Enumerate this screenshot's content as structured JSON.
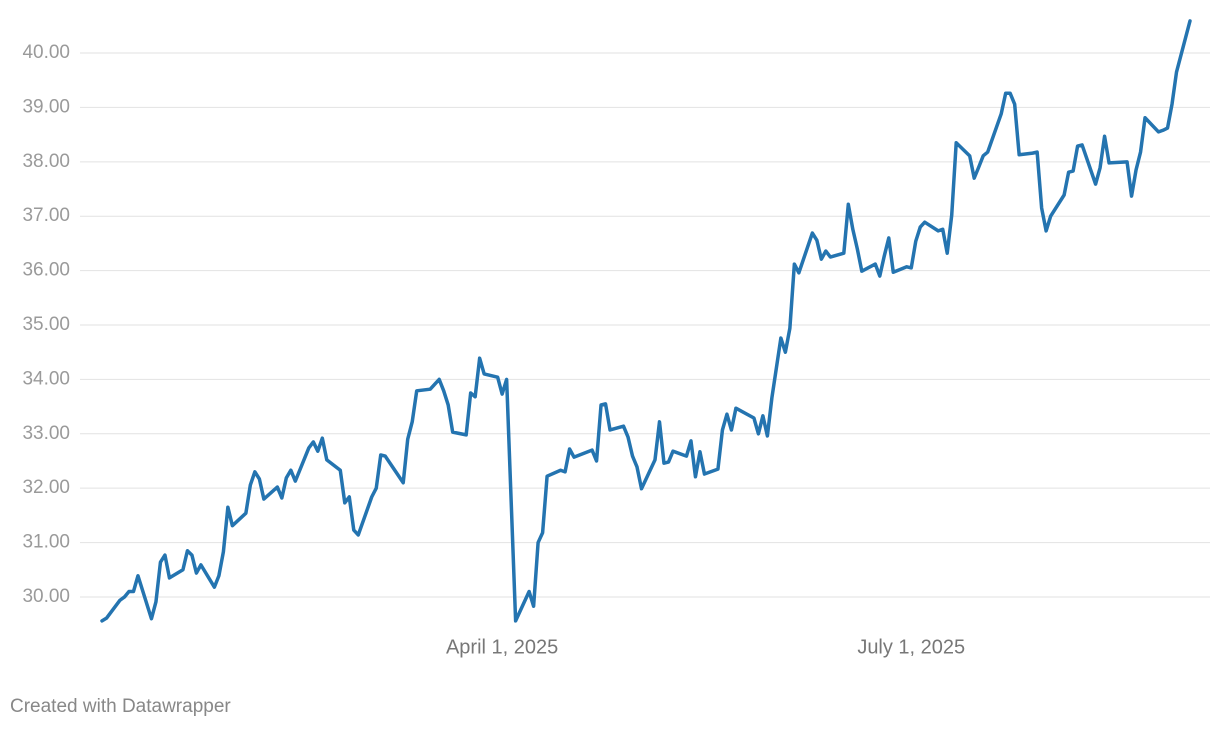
{
  "chart_data": {
    "type": "line",
    "x": [
      "2025-01-02",
      "2025-01-03",
      "2025-01-06",
      "2025-01-07",
      "2025-01-08",
      "2025-01-09",
      "2025-01-10",
      "2025-01-13",
      "2025-01-14",
      "2025-01-15",
      "2025-01-16",
      "2025-01-17",
      "2025-01-20",
      "2025-01-21",
      "2025-01-22",
      "2025-01-23",
      "2025-01-24",
      "2025-01-27",
      "2025-01-28",
      "2025-01-29",
      "2025-01-30",
      "2025-01-31",
      "2025-02-03",
      "2025-02-04",
      "2025-02-05",
      "2025-02-06",
      "2025-02-07",
      "2025-02-10",
      "2025-02-11",
      "2025-02-12",
      "2025-02-13",
      "2025-02-14",
      "2025-02-17",
      "2025-02-18",
      "2025-02-19",
      "2025-02-20",
      "2025-02-21",
      "2025-02-24",
      "2025-02-25",
      "2025-02-26",
      "2025-02-27",
      "2025-02-28",
      "2025-03-03",
      "2025-03-04",
      "2025-03-05",
      "2025-03-06",
      "2025-03-10",
      "2025-03-11",
      "2025-03-12",
      "2025-03-13",
      "2025-03-16",
      "2025-03-18",
      "2025-03-19",
      "2025-03-20",
      "2025-03-21",
      "2025-03-24",
      "2025-03-25",
      "2025-03-26",
      "2025-03-27",
      "2025-03-28",
      "2025-03-31",
      "2025-04-01",
      "2025-04-02",
      "2025-04-04",
      "2025-04-07",
      "2025-04-08",
      "2025-04-09",
      "2025-04-10",
      "2025-04-11",
      "2025-04-14",
      "2025-04-15",
      "2025-04-16",
      "2025-04-17",
      "2025-04-21",
      "2025-04-22",
      "2025-04-23",
      "2025-04-24",
      "2025-04-25",
      "2025-04-28",
      "2025-04-29",
      "2025-04-30",
      "2025-05-01",
      "2025-05-02",
      "2025-05-05",
      "2025-05-06",
      "2025-05-07",
      "2025-05-08",
      "2025-05-09",
      "2025-05-12",
      "2025-05-13",
      "2025-05-14",
      "2025-05-15",
      "2025-05-16",
      "2025-05-19",
      "2025-05-20",
      "2025-05-21",
      "2025-05-22",
      "2025-05-23",
      "2025-05-27",
      "2025-05-28",
      "2025-05-29",
      "2025-05-30",
      "2025-05-31",
      "2025-06-02",
      "2025-06-03",
      "2025-06-04",
      "2025-06-05",
      "2025-06-06",
      "2025-06-09",
      "2025-06-10",
      "2025-06-11",
      "2025-06-12",
      "2025-06-13",
      "2025-06-16",
      "2025-06-17",
      "2025-06-18",
      "2025-06-19",
      "2025-06-20",
      "2025-06-23",
      "2025-06-24",
      "2025-06-25",
      "2025-06-26",
      "2025-06-27",
      "2025-06-30",
      "2025-07-01",
      "2025-07-02",
      "2025-07-03",
      "2025-07-04",
      "2025-07-07",
      "2025-07-08",
      "2025-07-09",
      "2025-07-10",
      "2025-07-11",
      "2025-07-14",
      "2025-07-15",
      "2025-07-16",
      "2025-07-17",
      "2025-07-18",
      "2025-07-21",
      "2025-07-22",
      "2025-07-23",
      "2025-07-24",
      "2025-07-25",
      "2025-07-28",
      "2025-07-29",
      "2025-07-30",
      "2025-07-31",
      "2025-08-01",
      "2025-08-04",
      "2025-08-05",
      "2025-08-06",
      "2025-08-07",
      "2025-08-08",
      "2025-08-11",
      "2025-08-12",
      "2025-08-13",
      "2025-08-14",
      "2025-08-18",
      "2025-08-19",
      "2025-08-20",
      "2025-08-21",
      "2025-08-22",
      "2025-08-25",
      "2025-08-26",
      "2025-08-27",
      "2025-08-28",
      "2025-08-29",
      "2025-09-01"
    ],
    "values": [
      29.56,
      29.61,
      29.94,
      30.0,
      30.1,
      30.1,
      30.39,
      29.6,
      29.91,
      30.64,
      30.77,
      30.35,
      30.5,
      30.85,
      30.77,
      30.44,
      30.59,
      30.18,
      30.39,
      30.83,
      31.65,
      31.31,
      31.54,
      32.06,
      32.3,
      32.17,
      31.8,
      32.02,
      31.82,
      32.19,
      32.33,
      32.13,
      32.74,
      32.85,
      32.68,
      32.92,
      32.52,
      32.33,
      31.73,
      31.84,
      31.23,
      31.14,
      31.84,
      32.0,
      32.61,
      32.59,
      32.1,
      32.9,
      33.22,
      33.79,
      33.82,
      34.0,
      33.79,
      33.53,
      33.03,
      32.98,
      33.75,
      33.68,
      34.39,
      34.1,
      34.04,
      33.73,
      34.0,
      29.56,
      30.1,
      29.83,
      31.0,
      31.18,
      32.22,
      32.33,
      32.3,
      32.72,
      32.57,
      32.7,
      32.5,
      33.53,
      33.55,
      33.07,
      33.14,
      32.94,
      32.59,
      32.39,
      31.99,
      32.52,
      33.22,
      32.46,
      32.48,
      32.68,
      32.59,
      32.87,
      32.21,
      32.67,
      32.26,
      32.35,
      33.07,
      33.36,
      33.07,
      33.47,
      33.29,
      33.0,
      33.33,
      32.96,
      33.66,
      34.76,
      34.5,
      34.94,
      36.12,
      35.96,
      36.69,
      36.56,
      36.21,
      36.36,
      36.25,
      36.32,
      37.22,
      36.76,
      36.4,
      35.99,
      36.12,
      35.9,
      36.27,
      36.6,
      35.97,
      36.07,
      36.05,
      36.54,
      36.8,
      36.89,
      36.73,
      36.76,
      36.32,
      37.02,
      38.35,
      38.11,
      37.7,
      37.9,
      38.11,
      38.18,
      38.88,
      39.26,
      39.26,
      39.06,
      38.13,
      38.16,
      38.18,
      37.15,
      36.73,
      37.0,
      37.39,
      37.81,
      37.83,
      38.29,
      38.31,
      37.59,
      37.89,
      38.47,
      37.98,
      38.0,
      37.37,
      37.85,
      38.18,
      38.81,
      38.55,
      38.58,
      38.62,
      39.06,
      39.65,
      40.59
    ],
    "color": "#2474b0",
    "xlim": [
      "2025-01-02",
      "2025-09-01"
    ],
    "xticks": [
      {
        "value": "2025-04-01",
        "label": "April 1, 2025"
      },
      {
        "value": "2025-07-01",
        "label": "July 1, 2025"
      }
    ],
    "ylim": [
      29.4,
      40.6
    ],
    "yticks": [
      {
        "value": 30,
        "label": "30.00"
      },
      {
        "value": 31,
        "label": "31.00"
      },
      {
        "value": 32,
        "label": "32.00"
      },
      {
        "value": 33,
        "label": "33.00"
      },
      {
        "value": 34,
        "label": "34.00"
      },
      {
        "value": 35,
        "label": "35.00"
      },
      {
        "value": 36,
        "label": "36.00"
      },
      {
        "value": 37,
        "label": "37.00"
      },
      {
        "value": 38,
        "label": "38.00"
      },
      {
        "value": 39,
        "label": "39.00"
      },
      {
        "value": 40,
        "label": "40.00"
      }
    ],
    "grid": true,
    "credit": "Created with Datawrapper"
  }
}
